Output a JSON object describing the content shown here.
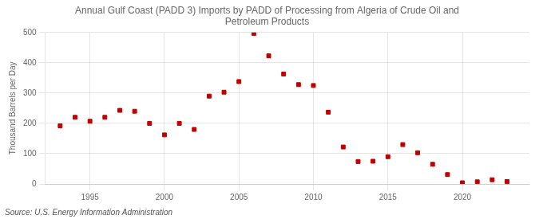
{
  "chart_data": {
    "type": "scatter",
    "title": "Annual Gulf Coast (PADD 3) Imports by PADD of Processing from Algeria of Crude Oil and\nPetroleum Products",
    "ylabel": "Thousand Barrels per Day",
    "source": "Source: U.S. Energy Information Administration",
    "x": [
      1993,
      1994,
      1995,
      1996,
      1997,
      1998,
      1999,
      2000,
      2001,
      2002,
      2003,
      2004,
      2005,
      2006,
      2007,
      2008,
      2009,
      2010,
      2011,
      2012,
      2013,
      2014,
      2015,
      2016,
      2017,
      2018,
      2019,
      2020,
      2021,
      2022,
      2023
    ],
    "values": [
      192,
      220,
      207,
      220,
      243,
      240,
      200,
      162,
      200,
      180,
      290,
      303,
      338,
      497,
      423,
      363,
      328,
      325,
      237,
      122,
      74,
      75,
      90,
      130,
      103,
      65,
      31,
      4,
      7,
      14,
      8
    ],
    "color": "#c00000",
    "marker": "square",
    "xlim": [
      1992.0,
      2024.5
    ],
    "xticks": [
      1995,
      2000,
      2005,
      2010,
      2015,
      2020
    ],
    "ylim": [
      0,
      500
    ],
    "yticks": [
      0,
      100,
      200,
      300,
      400,
      500
    ],
    "grid": true
  }
}
